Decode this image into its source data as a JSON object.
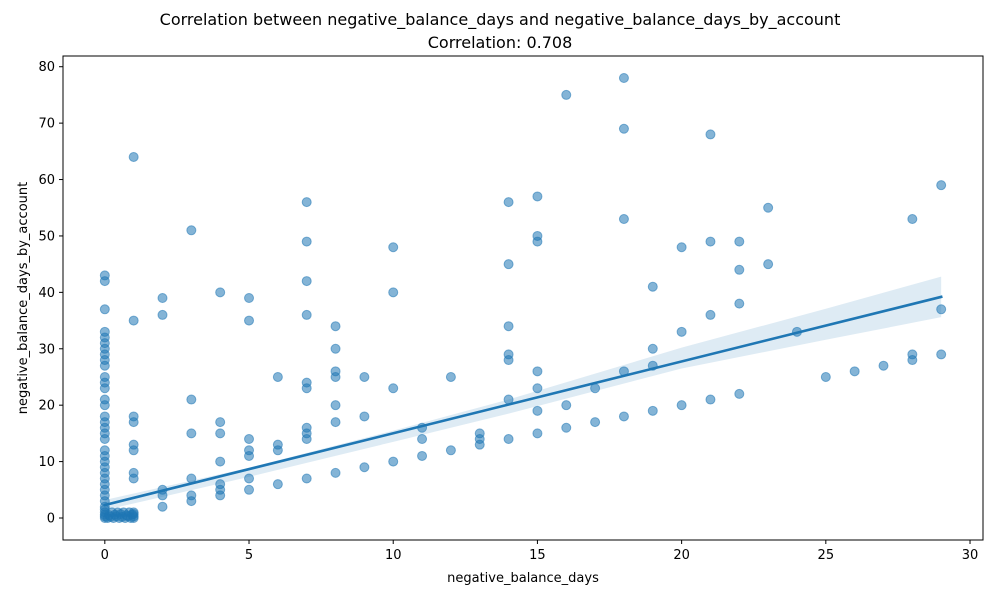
{
  "chart_data": {
    "type": "scatter",
    "title": "Correlation between negative_balance_days and negative_balance_days_by_account",
    "subtitle": "Correlation: 0.708",
    "xlabel": "negative_balance_days",
    "ylabel": "negative_balance_days_by_account",
    "xlim": [
      -1.45,
      30.45
    ],
    "ylim": [
      -3.9,
      81.9
    ],
    "xticks": [
      0,
      5,
      10,
      15,
      20,
      25,
      30
    ],
    "yticks": [
      0,
      10,
      20,
      30,
      40,
      50,
      60,
      70,
      80
    ],
    "grid": false,
    "point_color": "#1f77b4",
    "regression": {
      "x": [
        0,
        29
      ],
      "y": [
        2.3,
        39.2
      ]
    },
    "confidence_band": {
      "x": [
        0,
        5,
        10,
        14,
        20,
        25,
        29
      ],
      "upper": [
        3.2,
        8.9,
        15.5,
        21.0,
        30.2,
        37.1,
        42.8
      ],
      "lower": [
        1.4,
        7.3,
        13.5,
        18.5,
        26.5,
        31.6,
        35.6
      ]
    },
    "points": [
      [
        0,
        0
      ],
      [
        0,
        0.3
      ],
      [
        0,
        0.6
      ],
      [
        0,
        1
      ],
      [
        0,
        1.5
      ],
      [
        0,
        2
      ],
      [
        0,
        3
      ],
      [
        0,
        4
      ],
      [
        0,
        5
      ],
      [
        0,
        6
      ],
      [
        0,
        7
      ],
      [
        0,
        8
      ],
      [
        0,
        9
      ],
      [
        0,
        10
      ],
      [
        0,
        11
      ],
      [
        0,
        12
      ],
      [
        0,
        14
      ],
      [
        0,
        15
      ],
      [
        0,
        16
      ],
      [
        0,
        17
      ],
      [
        0,
        18
      ],
      [
        0,
        20
      ],
      [
        0,
        21
      ],
      [
        0,
        23
      ],
      [
        0,
        24
      ],
      [
        0,
        25
      ],
      [
        0,
        27
      ],
      [
        0,
        28
      ],
      [
        0,
        29
      ],
      [
        0,
        30
      ],
      [
        0,
        31
      ],
      [
        0,
        32
      ],
      [
        0,
        33
      ],
      [
        0,
        37
      ],
      [
        0,
        42
      ],
      [
        0,
        43
      ],
      [
        0.1,
        0
      ],
      [
        0.15,
        0.5
      ],
      [
        0.2,
        0.2
      ],
      [
        0.25,
        1
      ],
      [
        0.3,
        0
      ],
      [
        0.35,
        0.6
      ],
      [
        0.4,
        0.3
      ],
      [
        0.45,
        1
      ],
      [
        0.5,
        0
      ],
      [
        0.55,
        0.7
      ],
      [
        0.6,
        0.2
      ],
      [
        0.65,
        1
      ],
      [
        0.7,
        0
      ],
      [
        0.75,
        0.5
      ],
      [
        0.8,
        0.3
      ],
      [
        0.85,
        1
      ],
      [
        0.9,
        0
      ],
      [
        0.95,
        0.6
      ],
      [
        1,
        0
      ],
      [
        1,
        0.3
      ],
      [
        1,
        0.7
      ],
      [
        1,
        1
      ],
      [
        1,
        7
      ],
      [
        1,
        8
      ],
      [
        1,
        12
      ],
      [
        1,
        13
      ],
      [
        1,
        17
      ],
      [
        1,
        18
      ],
      [
        1,
        35
      ],
      [
        1,
        64
      ],
      [
        2,
        2
      ],
      [
        2,
        4
      ],
      [
        2,
        5
      ],
      [
        2,
        36
      ],
      [
        2,
        39
      ],
      [
        3,
        3
      ],
      [
        3,
        4
      ],
      [
        3,
        7
      ],
      [
        3,
        15
      ],
      [
        3,
        21
      ],
      [
        3,
        51
      ],
      [
        4,
        4
      ],
      [
        4,
        5
      ],
      [
        4,
        6
      ],
      [
        4,
        10
      ],
      [
        4,
        15
      ],
      [
        4,
        17
      ],
      [
        4,
        40
      ],
      [
        5,
        5
      ],
      [
        5,
        7
      ],
      [
        5,
        11
      ],
      [
        5,
        12
      ],
      [
        5,
        14
      ],
      [
        5,
        35
      ],
      [
        5,
        39
      ],
      [
        6,
        6
      ],
      [
        6,
        12
      ],
      [
        6,
        13
      ],
      [
        6,
        25
      ],
      [
        7,
        7
      ],
      [
        7,
        14
      ],
      [
        7,
        15
      ],
      [
        7,
        16
      ],
      [
        7,
        23
      ],
      [
        7,
        24
      ],
      [
        7,
        36
      ],
      [
        7,
        42
      ],
      [
        7,
        49
      ],
      [
        7,
        56
      ],
      [
        8,
        8
      ],
      [
        8,
        17
      ],
      [
        8,
        20
      ],
      [
        8,
        25
      ],
      [
        8,
        26
      ],
      [
        8,
        30
      ],
      [
        8,
        34
      ],
      [
        9,
        9
      ],
      [
        9,
        18
      ],
      [
        9,
        25
      ],
      [
        10,
        10
      ],
      [
        10,
        23
      ],
      [
        10,
        40
      ],
      [
        10,
        48
      ],
      [
        11,
        11
      ],
      [
        11,
        14
      ],
      [
        11,
        16
      ],
      [
        12,
        12
      ],
      [
        12,
        25
      ],
      [
        13,
        13
      ],
      [
        13,
        14
      ],
      [
        13,
        15
      ],
      [
        14,
        14
      ],
      [
        14,
        21
      ],
      [
        14,
        28
      ],
      [
        14,
        29
      ],
      [
        14,
        34
      ],
      [
        14,
        45
      ],
      [
        14,
        56
      ],
      [
        15,
        15
      ],
      [
        15,
        19
      ],
      [
        15,
        23
      ],
      [
        15,
        26
      ],
      [
        15,
        49
      ],
      [
        15,
        50
      ],
      [
        15,
        57
      ],
      [
        16,
        16
      ],
      [
        16,
        20
      ],
      [
        16,
        75
      ],
      [
        17,
        17
      ],
      [
        17,
        23
      ],
      [
        18,
        18
      ],
      [
        18,
        26
      ],
      [
        18,
        53
      ],
      [
        18,
        69
      ],
      [
        18,
        78
      ],
      [
        19,
        19
      ],
      [
        19,
        27
      ],
      [
        19,
        30
      ],
      [
        19,
        41
      ],
      [
        20,
        20
      ],
      [
        20,
        33
      ],
      [
        20,
        48
      ],
      [
        21,
        21
      ],
      [
        21,
        36
      ],
      [
        21,
        49
      ],
      [
        21,
        68
      ],
      [
        22,
        22
      ],
      [
        22,
        38
      ],
      [
        22,
        44
      ],
      [
        22,
        49
      ],
      [
        23,
        45
      ],
      [
        23,
        55
      ],
      [
        24,
        33
      ],
      [
        25,
        25
      ],
      [
        26,
        26
      ],
      [
        27,
        27
      ],
      [
        28,
        28
      ],
      [
        28,
        29
      ],
      [
        28,
        53
      ],
      [
        29,
        29
      ],
      [
        29,
        37
      ],
      [
        29,
        59
      ]
    ]
  }
}
